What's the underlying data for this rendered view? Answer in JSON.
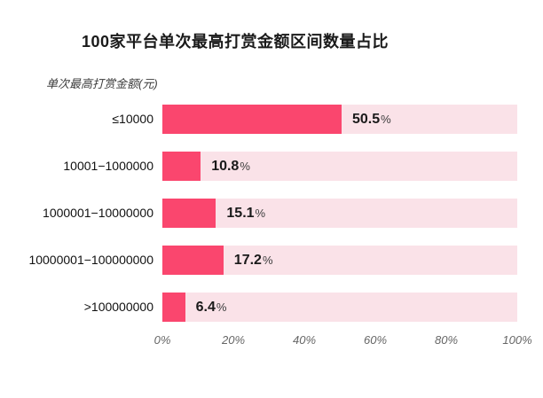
{
  "chart_data": {
    "type": "bar",
    "orientation": "horizontal",
    "title": "100家平台单次最高打赏金额区间数量占比",
    "axis_title": "单次最高打赏金额(元)",
    "categories": [
      "≤10000",
      "10001−1000000",
      "1000001−10000000",
      "10000001−100000000",
      ">100000000"
    ],
    "values": [
      50.5,
      10.8,
      15.1,
      17.2,
      6.4
    ],
    "unit": "%",
    "xlim": [
      0,
      100
    ],
    "x_ticks": [
      "0%",
      "20%",
      "40%",
      "60%",
      "80%",
      "100%"
    ],
    "grid": false,
    "legend": "none",
    "bar_color": "#fa466e",
    "track_color": "#fae2e8",
    "title_color": "#1a1a1a",
    "tick_label_color": "#666666"
  }
}
